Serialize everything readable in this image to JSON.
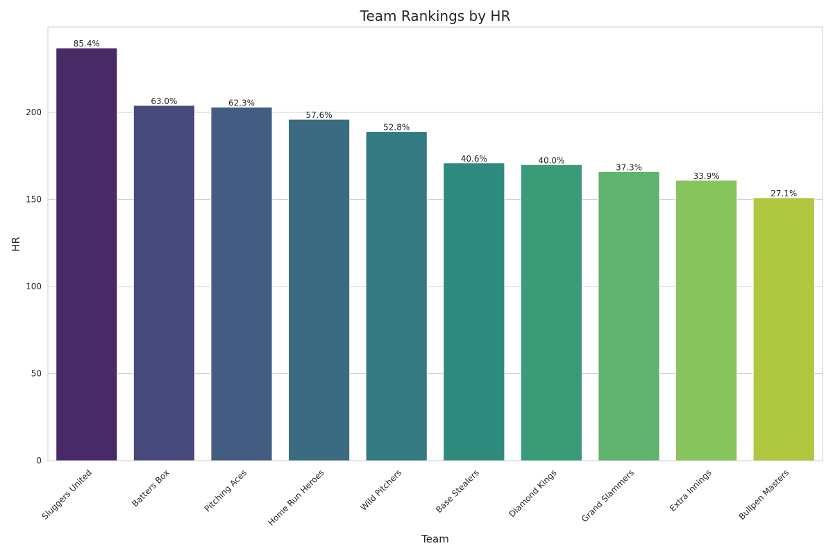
{
  "chart_data": {
    "type": "bar",
    "title": "Team Rankings by HR",
    "xlabel": "Team",
    "ylabel": "HR",
    "ylim": [
      0,
      249
    ],
    "yticks": [
      0,
      50,
      100,
      150,
      200
    ],
    "grid": true,
    "categories": [
      "Sluggers United",
      "Batters Box",
      "Pitching Aces",
      "Home Run Heroes",
      "Wild Pitchers",
      "Base Stealers",
      "Diamond Kings",
      "Grand Slammers",
      "Extra Innings",
      "Bullpen Masters"
    ],
    "values": [
      237,
      204,
      203,
      196,
      189,
      171,
      170,
      166,
      161,
      151
    ],
    "data_labels": [
      "85.4%",
      "63.0%",
      "62.3%",
      "57.6%",
      "52.8%",
      "40.6%",
      "40.0%",
      "37.3%",
      "33.9%",
      "27.1%"
    ],
    "colors": [
      "#482a66",
      "#48497c",
      "#435c82",
      "#3a6b80",
      "#337b80",
      "#2f8b7e",
      "#3a9c77",
      "#5fb36e",
      "#88c45d",
      "#afc73e"
    ]
  }
}
